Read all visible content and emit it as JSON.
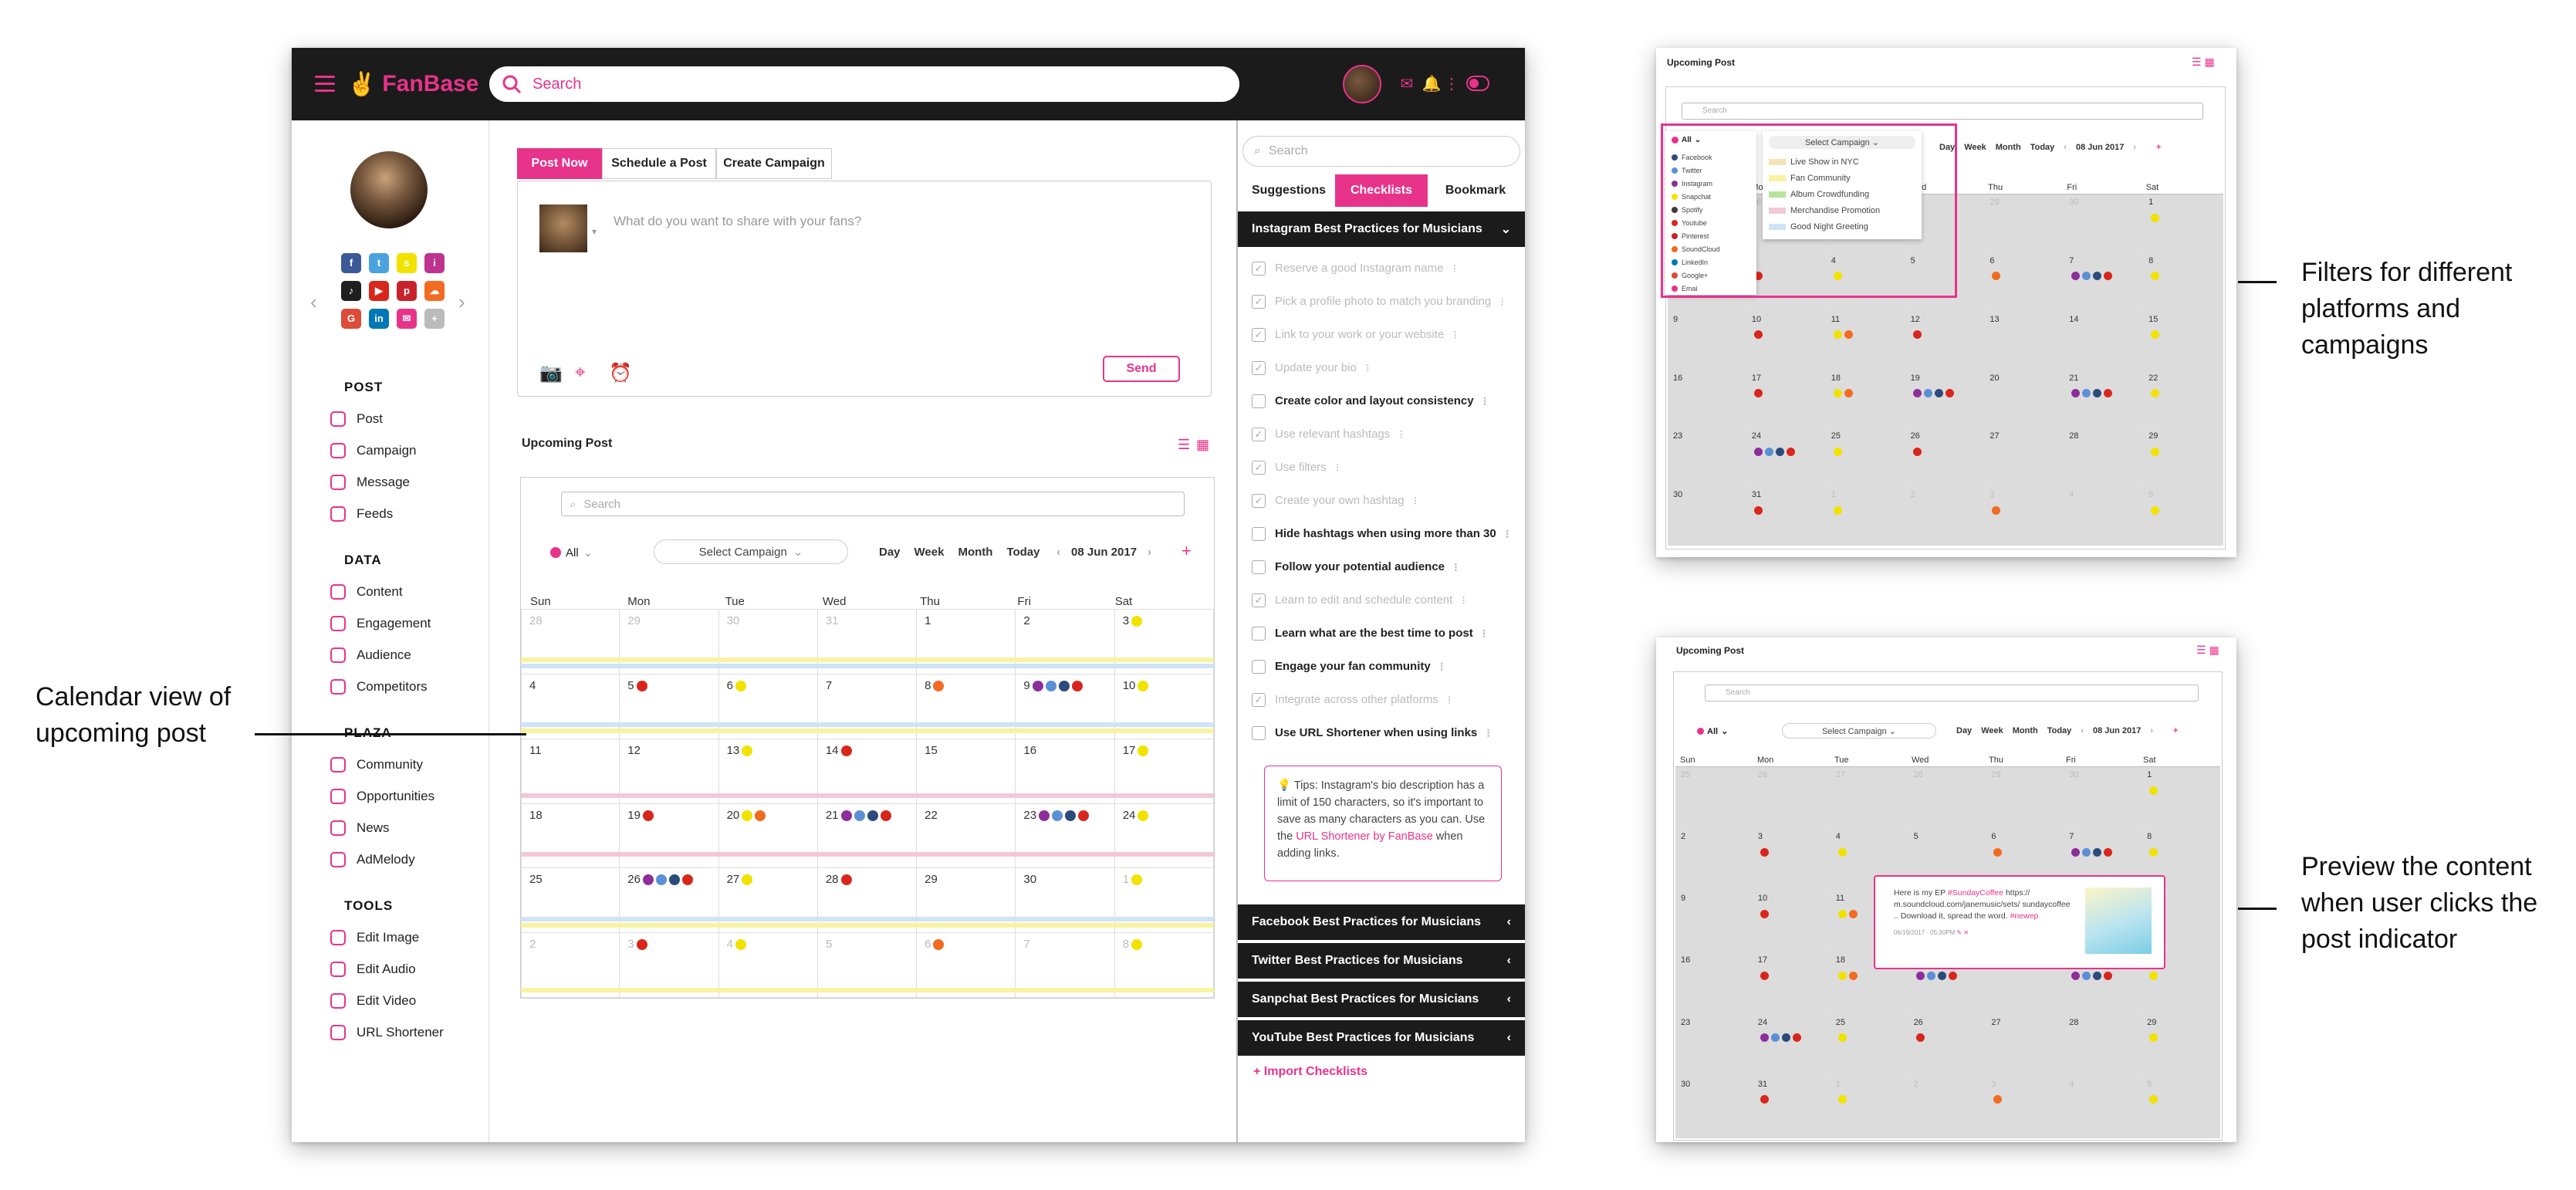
{
  "app": {
    "brand": "FanBase",
    "search_placeholder": "Search",
    "colors": {
      "accent": "#e8338a",
      "topbar": "#1b1b1b"
    }
  },
  "sidebar": {
    "sections": [
      {
        "heading": "POST",
        "items": [
          "Post",
          "Campaign",
          "Message",
          "Feeds"
        ]
      },
      {
        "heading": "DATA",
        "items": [
          "Content",
          "Engagement",
          "Audience",
          "Competitors"
        ]
      },
      {
        "heading": "PLAZA",
        "items": [
          "Community",
          "Opportunities",
          "News",
          "AdMelody"
        ]
      },
      {
        "heading": "TOOLS",
        "items": [
          "Edit Image",
          "Edit Audio",
          "Edit Video",
          "URL Shortener"
        ]
      }
    ],
    "socials": [
      {
        "icon": "facebook-icon",
        "glyph": "f",
        "color": "#3b5998"
      },
      {
        "icon": "twitter-icon",
        "glyph": "t",
        "color": "#4aa3df"
      },
      {
        "icon": "snapchat-icon",
        "glyph": "s",
        "color": "#f2e200"
      },
      {
        "icon": "instagram-icon",
        "glyph": "i",
        "color": "#c0328f"
      },
      {
        "icon": "spotify-icon",
        "glyph": "♪",
        "color": "#1f1f1f"
      },
      {
        "icon": "youtube-icon",
        "glyph": "▶",
        "color": "#d9261c"
      },
      {
        "icon": "pinterest-icon",
        "glyph": "p",
        "color": "#c8232c"
      },
      {
        "icon": "soundcloud-icon",
        "glyph": "☁",
        "color": "#f26b21"
      },
      {
        "icon": "googleplus-icon",
        "glyph": "G",
        "color": "#dd4b39"
      },
      {
        "icon": "linkedin-icon",
        "glyph": "in",
        "color": "#0077b5"
      },
      {
        "icon": "email-icon",
        "glyph": "✉",
        "color": "#e8338a"
      },
      {
        "icon": "add-icon",
        "glyph": "+",
        "color": "#bbbbbb"
      }
    ]
  },
  "composer": {
    "tabs": [
      "Post Now",
      "Schedule a Post",
      "Create Campaign"
    ],
    "placeholder": "What do you want to share with your fans?",
    "send_label": "Send"
  },
  "upcoming": {
    "title": "Upcoming Post",
    "search_placeholder": "Search",
    "filter_all": "All",
    "campaign_select": "Select Campaign",
    "views": [
      "Day",
      "Week",
      "Month",
      "Today"
    ],
    "date": "08 Jun 2017",
    "weekdays": [
      "Sun",
      "Mon",
      "Tue",
      "Wed",
      "Thu",
      "Fri",
      "Sat"
    ],
    "weeks": [
      [
        {
          "d": "28",
          "m": 1
        },
        {
          "d": "29",
          "m": 1
        },
        {
          "d": "30",
          "m": 1
        },
        {
          "d": "31",
          "m": 1
        },
        {
          "d": "1"
        },
        {
          "d": "2"
        },
        {
          "d": "3",
          "dots": [
            "#f2e200"
          ]
        }
      ],
      [
        {
          "d": "4"
        },
        {
          "d": "5",
          "dots": [
            "#d9261c"
          ]
        },
        {
          "d": "6",
          "dots": [
            "#f2e200"
          ]
        },
        {
          "d": "7"
        },
        {
          "d": "8",
          "dots": [
            "#f26b21"
          ]
        },
        {
          "d": "9",
          "dots": [
            "#8e2d9a",
            "#5b8fd6",
            "#2c4a7c",
            "#d9261c"
          ]
        },
        {
          "d": "10",
          "dots": [
            "#f2e200"
          ]
        }
      ],
      [
        {
          "d": "11"
        },
        {
          "d": "12"
        },
        {
          "d": "13",
          "dots": [
            "#f2e200"
          ]
        },
        {
          "d": "14",
          "dots": [
            "#d9261c"
          ]
        },
        {
          "d": "15"
        },
        {
          "d": "16"
        },
        {
          "d": "17",
          "dots": [
            "#f2e200"
          ]
        }
      ],
      [
        {
          "d": "18"
        },
        {
          "d": "19",
          "dots": [
            "#d9261c"
          ]
        },
        {
          "d": "20",
          "dots": [
            "#f2e200",
            "#f26b21"
          ]
        },
        {
          "d": "21",
          "dots": [
            "#8e2d9a",
            "#5b8fd6",
            "#2c4a7c",
            "#d9261c"
          ]
        },
        {
          "d": "22"
        },
        {
          "d": "23",
          "dots": [
            "#8e2d9a",
            "#5b8fd6",
            "#2c4a7c",
            "#d9261c"
          ]
        },
        {
          "d": "24",
          "dots": [
            "#f2e200"
          ]
        }
      ],
      [
        {
          "d": "25"
        },
        {
          "d": "26",
          "dots": [
            "#8e2d9a",
            "#5b8fd6",
            "#2c4a7c",
            "#d9261c"
          ]
        },
        {
          "d": "27",
          "dots": [
            "#f2e200"
          ]
        },
        {
          "d": "28",
          "dots": [
            "#d9261c"
          ]
        },
        {
          "d": "29"
        },
        {
          "d": "30"
        },
        {
          "d": "1",
          "m": 1,
          "dots": [
            "#f2e200"
          ]
        }
      ],
      [
        {
          "d": "2",
          "m": 1
        },
        {
          "d": "3",
          "m": 1,
          "dots": [
            "#d9261c"
          ]
        },
        {
          "d": "4",
          "m": 1,
          "dots": [
            "#f2e200"
          ]
        },
        {
          "d": "5",
          "m": 1
        },
        {
          "d": "6",
          "m": 1,
          "dots": [
            "#f26b21"
          ]
        },
        {
          "d": "7",
          "m": 1
        },
        {
          "d": "8",
          "m": 1,
          "dots": [
            "#f2e200"
          ]
        }
      ]
    ]
  },
  "right_panel": {
    "search_placeholder": "Search",
    "tabs": [
      "Suggestions",
      "Checklists",
      "Bookmark"
    ],
    "open_section": "Instagram Best Practices for Musicians",
    "checklist": [
      {
        "text": "Reserve a good Instagram name",
        "done": true
      },
      {
        "text": "Pick a profile photo to match you branding",
        "done": true
      },
      {
        "text": "Link to your work or your website",
        "done": true
      },
      {
        "text": "Update your bio",
        "done": true
      },
      {
        "text": "Create color and layout consistency",
        "done": false
      },
      {
        "text": "Use relevant hashtags",
        "done": true
      },
      {
        "text": "Use filters",
        "done": true
      },
      {
        "text": "Create your own hashtag",
        "done": true
      },
      {
        "text": "Hide hashtags when using more than 30",
        "done": false
      },
      {
        "text": "Follow your potential audience",
        "done": false
      },
      {
        "text": "Learn to edit and schedule content",
        "done": true
      },
      {
        "text": "Learn what are the best time to post",
        "done": false
      },
      {
        "text": "Engage your fan community",
        "done": false
      },
      {
        "text": "Integrate across other platforms",
        "done": true
      },
      {
        "text": "Use URL Shortener when using links",
        "done": false
      }
    ],
    "tip": {
      "prefix": "Tips: Instagram's bio description has a limit of 150 characters, so it's important to save as many characters as you can. Use the ",
      "link": "URL Shortener by FanBase",
      "suffix": " when adding links."
    },
    "collapsed_sections": [
      "Facebook Best Practices for Musicians",
      "Twitter Best Practices for Musicians",
      "Sanpchat Best Practices for Musicians",
      "YouTube Best Practices for Musicians"
    ],
    "import_label": "+ Import Checklists"
  },
  "annotations": {
    "calendar": "Calendar view of upcoming post",
    "filters": "Filters for different platforms and campaigns",
    "preview": "Preview the content when user clicks the post indicator"
  },
  "mini_filters": {
    "title": "Upcoming Post",
    "search_placeholder": "Search",
    "filter_all": "All",
    "campaign_select": "Select Campaign",
    "views": [
      "Day",
      "Week",
      "Month",
      "Today"
    ],
    "date": "08 Jun 2017",
    "platforms": [
      {
        "name": "Facebook",
        "color": "#2c4a7c"
      },
      {
        "name": "Twitter",
        "color": "#5b8fd6"
      },
      {
        "name": "Instagram",
        "color": "#8e2d9a"
      },
      {
        "name": "Snapchat",
        "color": "#f2e200"
      },
      {
        "name": "Spotify",
        "color": "#3a3a3a"
      },
      {
        "name": "Youtube",
        "color": "#d9261c"
      },
      {
        "name": "Pinterest",
        "color": "#c8232c"
      },
      {
        "name": "SoundCloud",
        "color": "#f26b21"
      },
      {
        "name": "LinkedIn",
        "color": "#0077b5"
      },
      {
        "name": "Google+",
        "color": "#dd4b39"
      },
      {
        "name": "Emai",
        "color": "#e8338a"
      }
    ],
    "campaigns": [
      {
        "name": "Live Show in NYC",
        "color": "#f3e3b5"
      },
      {
        "name": "Fan Community",
        "color": "#f8f3a0"
      },
      {
        "name": "Album Crowdfunding",
        "color": "#b9e39a"
      },
      {
        "name": "Merchandise Promotion",
        "color": "#f3c8d8"
      },
      {
        "name": "Good Night Greeting",
        "color": "#cfe3f7"
      }
    ]
  },
  "mini_preview": {
    "title": "Upcoming Post",
    "search_placeholder": "Search",
    "filter_all": "All",
    "campaign_select": "Select Campaign",
    "views": [
      "Day",
      "Week",
      "Month",
      "Today"
    ],
    "date": "08 Jun 2017",
    "popup": {
      "line1": "Here is my EP ",
      "tag1": "#SundayCoffee",
      "line2": " https:// m.soundcloud.com/janemusic/sets/ sundaycoffee .. Download it, spread the word. ",
      "tag2": "#newep",
      "meta": "06/19/2017 · 05:30PM"
    }
  },
  "mini_weeks": [
    [
      {
        "d": "25",
        "m": 1
      },
      {
        "d": "26",
        "m": 1
      },
      {
        "d": "27",
        "m": 1
      },
      {
        "d": "28",
        "m": 1
      },
      {
        "d": "29",
        "m": 1
      },
      {
        "d": "30",
        "m": 1
      },
      {
        "d": "1",
        "dots": [
          "#f2e200"
        ]
      }
    ],
    [
      {
        "d": "2"
      },
      {
        "d": "3",
        "dots": [
          "#d9261c"
        ]
      },
      {
        "d": "4",
        "dots": [
          "#f2e200"
        ]
      },
      {
        "d": "5"
      },
      {
        "d": "6",
        "dots": [
          "#f26b21"
        ]
      },
      {
        "d": "7",
        "dots": [
          "#8e2d9a",
          "#5b8fd6",
          "#2c4a7c",
          "#d9261c"
        ]
      },
      {
        "d": "8",
        "dots": [
          "#f2e200"
        ]
      }
    ],
    [
      {
        "d": "9"
      },
      {
        "d": "10",
        "dots": [
          "#d9261c"
        ]
      },
      {
        "d": "11",
        "dots": [
          "#f2e200",
          "#f26b21"
        ]
      },
      {
        "d": "12",
        "dots": [
          "#d9261c"
        ]
      },
      {
        "d": "13"
      },
      {
        "d": "14"
      },
      {
        "d": "15",
        "dots": [
          "#f2e200"
        ]
      }
    ],
    [
      {
        "d": "16"
      },
      {
        "d": "17",
        "dots": [
          "#d9261c"
        ]
      },
      {
        "d": "18",
        "dots": [
          "#f2e200",
          "#f26b21"
        ]
      },
      {
        "d": "19",
        "dots": [
          "#8e2d9a",
          "#5b8fd6",
          "#2c4a7c",
          "#d9261c"
        ]
      },
      {
        "d": "20"
      },
      {
        "d": "21",
        "dots": [
          "#8e2d9a",
          "#5b8fd6",
          "#2c4a7c",
          "#d9261c"
        ]
      },
      {
        "d": "22",
        "dots": [
          "#f2e200"
        ]
      }
    ],
    [
      {
        "d": "23"
      },
      {
        "d": "24",
        "dots": [
          "#8e2d9a",
          "#5b8fd6",
          "#2c4a7c",
          "#d9261c"
        ]
      },
      {
        "d": "25",
        "dots": [
          "#f2e200"
        ]
      },
      {
        "d": "26",
        "dots": [
          "#d9261c"
        ]
      },
      {
        "d": "27"
      },
      {
        "d": "28"
      },
      {
        "d": "29",
        "dots": [
          "#f2e200"
        ]
      }
    ],
    [
      {
        "d": "30"
      },
      {
        "d": "31",
        "dots": [
          "#d9261c"
        ]
      },
      {
        "d": "1",
        "m": 1,
        "dots": [
          "#f2e200"
        ]
      },
      {
        "d": "2",
        "m": 1
      },
      {
        "d": "3",
        "m": 1,
        "dots": [
          "#f26b21"
        ]
      },
      {
        "d": "4",
        "m": 1
      },
      {
        "d": "5",
        "m": 1,
        "dots": [
          "#f2e200"
        ]
      }
    ]
  ]
}
